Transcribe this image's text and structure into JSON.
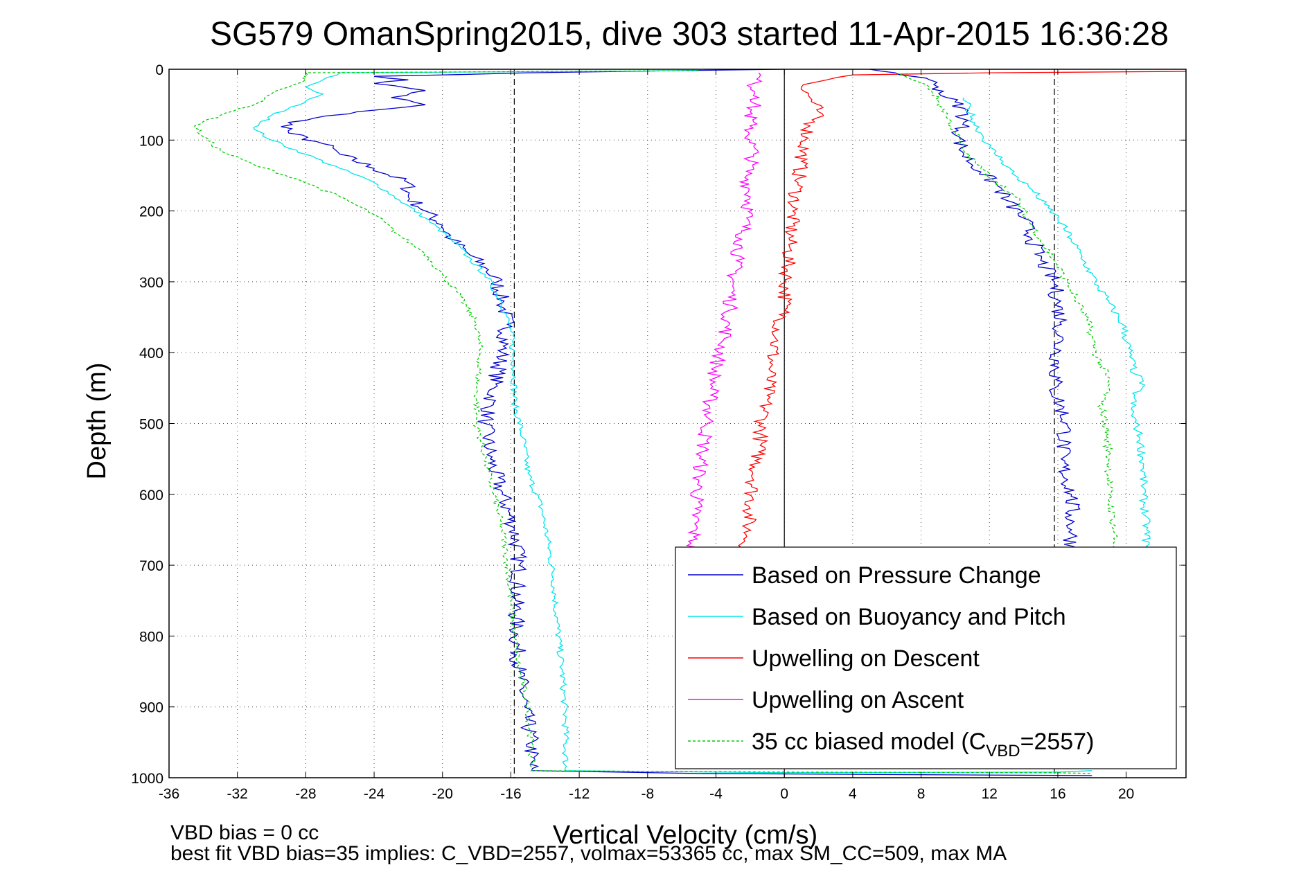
{
  "chart_data": {
    "type": "line",
    "title": "SG579 OmanSpring2015, dive 303 started 11-Apr-2015 16:36:28",
    "xlabel": "Vertical Velocity (cm/s)",
    "ylabel": "Depth (m)",
    "xlim": [
      -36,
      23.5
    ],
    "ylim": [
      0,
      1000
    ],
    "y_reversed": true,
    "x_ticks": [
      -36,
      -32,
      -28,
      -24,
      -20,
      -16,
      -12,
      -8,
      -4,
      0,
      4,
      8,
      12,
      16,
      20
    ],
    "y_ticks": [
      0,
      100,
      200,
      300,
      400,
      500,
      600,
      700,
      800,
      900,
      1000
    ],
    "grid": true,
    "legend_position": "bottom-right",
    "reference_lines": {
      "zero_line": 0,
      "dashed_lines": [
        -15.8,
        15.8
      ]
    },
    "series": [
      {
        "name": "Based on Pressure Change",
        "color": "#0000cc",
        "style": "solid",
        "points": [
          [
            0,
            0
          ],
          [
            -15,
            5
          ],
          [
            -24,
            10
          ],
          [
            -22,
            15
          ],
          [
            -24,
            20
          ],
          [
            -21,
            30
          ],
          [
            -23,
            40
          ],
          [
            -21,
            50
          ],
          [
            -25,
            60
          ],
          [
            -29,
            75
          ],
          [
            -29,
            90
          ],
          [
            -27,
            105
          ],
          [
            -26,
            120
          ],
          [
            -24,
            140
          ],
          [
            -22,
            160
          ],
          [
            -22,
            180
          ],
          [
            -21,
            200
          ],
          [
            -20,
            220
          ],
          [
            -19.5,
            240
          ],
          [
            -18.5,
            260
          ],
          [
            -17.5,
            280
          ],
          [
            -16.8,
            300
          ],
          [
            -16.5,
            330
          ],
          [
            -16.2,
            360
          ],
          [
            -16.5,
            400
          ],
          [
            -17,
            450
          ],
          [
            -17.5,
            500
          ],
          [
            -17.2,
            550
          ],
          [
            -16.5,
            600
          ],
          [
            -15.8,
            650
          ],
          [
            -15.5,
            700
          ],
          [
            -15.7,
            750
          ],
          [
            -15.7,
            800
          ],
          [
            -15.5,
            850
          ],
          [
            -15.2,
            900
          ],
          [
            -14.8,
            950
          ],
          [
            -14.8,
            990
          ],
          [
            -5,
            994
          ],
          [
            10,
            996
          ],
          [
            18,
            997
          ]
        ]
      },
      {
        "name": "Based on Buoyancy and Pitch",
        "color": "#00e5ee",
        "style": "solid",
        "points": [
          [
            -5,
            2
          ],
          [
            -26,
            5
          ],
          [
            -27,
            15
          ],
          [
            -28,
            25
          ],
          [
            -27,
            35
          ],
          [
            -28,
            45
          ],
          [
            -30,
            65
          ],
          [
            -31,
            85
          ],
          [
            -30,
            100
          ],
          [
            -28,
            120
          ],
          [
            -26,
            140
          ],
          [
            -24,
            160
          ],
          [
            -22.5,
            185
          ],
          [
            -21,
            210
          ],
          [
            -19.5,
            240
          ],
          [
            -18.5,
            265
          ],
          [
            -17.5,
            290
          ],
          [
            -16.5,
            330
          ],
          [
            -16,
            370
          ],
          [
            -15.8,
            420
          ],
          [
            -15.8,
            470
          ],
          [
            -15.3,
            520
          ],
          [
            -15,
            570
          ],
          [
            -14.2,
            620
          ],
          [
            -13.8,
            670
          ],
          [
            -13.5,
            720
          ],
          [
            -13.3,
            780
          ],
          [
            -13,
            850
          ],
          [
            -12.8,
            920
          ],
          [
            -12.8,
            990
          ],
          [
            0,
            993
          ],
          [
            16,
            992
          ],
          [
            18,
            990
          ]
        ]
      },
      {
        "name": "Upwelling on Descent",
        "color": "#ff0000",
        "style": "solid",
        "points": [
          [
            23.5,
            3
          ],
          [
            12,
            5
          ],
          [
            4,
            8
          ],
          [
            2.5,
            15
          ],
          [
            1,
            25
          ],
          [
            1.5,
            40
          ],
          [
            2,
            60
          ],
          [
            1.5,
            80
          ],
          [
            1.2,
            100
          ],
          [
            1,
            130
          ],
          [
            0.8,
            160
          ],
          [
            0.5,
            200
          ],
          [
            0.3,
            250
          ],
          [
            0.1,
            300
          ],
          [
            0,
            340
          ],
          [
            -0.5,
            380
          ],
          [
            -0.8,
            420
          ],
          [
            -1,
            460
          ],
          [
            -1.3,
            500
          ],
          [
            -1.5,
            540
          ],
          [
            -1.8,
            580
          ],
          [
            -2,
            620
          ],
          [
            -2.2,
            660
          ],
          [
            -2.3,
            700
          ]
        ]
      },
      {
        "name": "Upwelling on Ascent",
        "color": "#ff00ff",
        "style": "solid",
        "points": [
          [
            -1.5,
            5
          ],
          [
            -1.8,
            20
          ],
          [
            -1.5,
            40
          ],
          [
            -2,
            60
          ],
          [
            -2,
            80
          ],
          [
            -2,
            100
          ],
          [
            -1.8,
            120
          ],
          [
            -2.2,
            150
          ],
          [
            -2,
            180
          ],
          [
            -2.2,
            210
          ],
          [
            -2.5,
            240
          ],
          [
            -2.8,
            270
          ],
          [
            -3,
            300
          ],
          [
            -3.2,
            340
          ],
          [
            -3.5,
            380
          ],
          [
            -4,
            420
          ],
          [
            -4.3,
            460
          ],
          [
            -4.5,
            500
          ],
          [
            -4.8,
            540
          ],
          [
            -5,
            580
          ],
          [
            -5.2,
            620
          ],
          [
            -5.3,
            660
          ],
          [
            -5.5,
            700
          ]
        ]
      },
      {
        "name": "35 cc biased model (C_VBD=2557)",
        "color": "#00cc00",
        "style": "dashed",
        "points": [
          [
            -5,
            2
          ],
          [
            -28,
            5
          ],
          [
            -28,
            15
          ],
          [
            -29,
            25
          ],
          [
            -30,
            35
          ],
          [
            -31,
            50
          ],
          [
            -33,
            65
          ],
          [
            -34.5,
            80
          ],
          [
            -34,
            95
          ],
          [
            -33,
            115
          ],
          [
            -31,
            135
          ],
          [
            -28.5,
            155
          ],
          [
            -26,
            180
          ],
          [
            -24,
            205
          ],
          [
            -22.5,
            235
          ],
          [
            -21,
            260
          ],
          [
            -20,
            290
          ],
          [
            -19,
            320
          ],
          [
            -18,
            360
          ],
          [
            -17.8,
            400
          ],
          [
            -18,
            450
          ],
          [
            -18,
            500
          ],
          [
            -17.5,
            550
          ],
          [
            -17,
            600
          ],
          [
            -16.5,
            650
          ],
          [
            -16.2,
            700
          ],
          [
            -16,
            750
          ],
          [
            -15.8,
            800
          ],
          [
            -15.5,
            850
          ],
          [
            -15,
            900
          ],
          [
            -14.8,
            950
          ],
          [
            -14.8,
            990
          ],
          [
            0,
            992
          ],
          [
            16,
            993
          ],
          [
            18,
            994
          ]
        ]
      }
    ],
    "ascent_series": [
      {
        "name": "Based on Pressure Change",
        "color": "#0000cc",
        "points": [
          [
            5,
            0
          ],
          [
            6.5,
            5
          ],
          [
            7.5,
            10
          ],
          [
            8.5,
            15
          ],
          [
            9,
            25
          ],
          [
            9.5,
            40
          ],
          [
            10.5,
            55
          ],
          [
            10.5,
            75
          ],
          [
            10.2,
            95
          ],
          [
            10.5,
            120
          ],
          [
            11.5,
            145
          ],
          [
            12.5,
            165
          ],
          [
            13,
            185
          ],
          [
            14,
            210
          ],
          [
            14.5,
            240
          ],
          [
            15,
            270
          ],
          [
            15.8,
            300
          ],
          [
            16,
            330
          ],
          [
            16.2,
            360
          ],
          [
            16,
            400
          ],
          [
            15.8,
            450
          ],
          [
            16.5,
            500
          ],
          [
            16.2,
            550
          ],
          [
            16.8,
            600
          ],
          [
            16.8,
            650
          ],
          [
            16.8,
            700
          ],
          [
            16.8,
            760
          ]
        ]
      },
      {
        "name": "Based on Buoyancy and Pitch",
        "color": "#00e5ee",
        "points": [
          [
            10.5,
            40
          ],
          [
            11,
            70
          ],
          [
            11.5,
            90
          ],
          [
            12,
            110
          ],
          [
            12.8,
            130
          ],
          [
            13.5,
            150
          ],
          [
            14.5,
            170
          ],
          [
            15.2,
            190
          ],
          [
            16,
            210
          ],
          [
            16.8,
            240
          ],
          [
            17.5,
            270
          ],
          [
            18.2,
            300
          ],
          [
            19,
            330
          ],
          [
            19.8,
            360
          ],
          [
            20.2,
            400
          ],
          [
            20.5,
            430
          ],
          [
            21,
            440
          ],
          [
            20.5,
            460
          ],
          [
            20.3,
            480
          ],
          [
            20.8,
            520
          ],
          [
            21,
            560
          ],
          [
            21,
            600
          ],
          [
            21.2,
            650
          ],
          [
            21.2,
            700
          ]
        ]
      },
      {
        "name": "35 cc biased model (C_VBD=2557)",
        "color": "#00cc00",
        "points": [
          [
            6.5,
            5
          ],
          [
            7.5,
            15
          ],
          [
            8.5,
            25
          ],
          [
            9,
            45
          ],
          [
            9.5,
            65
          ],
          [
            10,
            90
          ],
          [
            10.5,
            115
          ],
          [
            11.5,
            140
          ],
          [
            12.5,
            160
          ],
          [
            13.5,
            180
          ],
          [
            14.2,
            210
          ],
          [
            15,
            240
          ],
          [
            15.8,
            270
          ],
          [
            16.5,
            300
          ],
          [
            17.2,
            330
          ],
          [
            17.8,
            360
          ],
          [
            18.2,
            400
          ],
          [
            18.8,
            430
          ],
          [
            19,
            450
          ],
          [
            18.5,
            470
          ],
          [
            18.8,
            500
          ],
          [
            19,
            550
          ],
          [
            19,
            600
          ],
          [
            19.3,
            650
          ],
          [
            19.4,
            690
          ]
        ]
      }
    ],
    "legend": [
      {
        "label": "Based on Pressure Change",
        "color": "#0000cc",
        "style": "solid"
      },
      {
        "label": "Based on Buoyancy and Pitch",
        "color": "#00e5ee",
        "style": "solid"
      },
      {
        "label": "Upwelling on Descent",
        "color": "#ff0000",
        "style": "solid"
      },
      {
        "label": "Upwelling on Ascent",
        "color": "#ff00ff",
        "style": "solid"
      },
      {
        "label_prefix": "35 cc biased model (C",
        "label_sub": "VBD",
        "label_suffix": "=2557)",
        "color": "#00cc00",
        "style": "dashed"
      }
    ]
  },
  "footer": {
    "line1": "VBD bias = 0 cc",
    "line2": "best fit VBD bias=35 implies: C_VBD=2557, volmax=53365 cc, max SM_CC=509, max MA"
  }
}
